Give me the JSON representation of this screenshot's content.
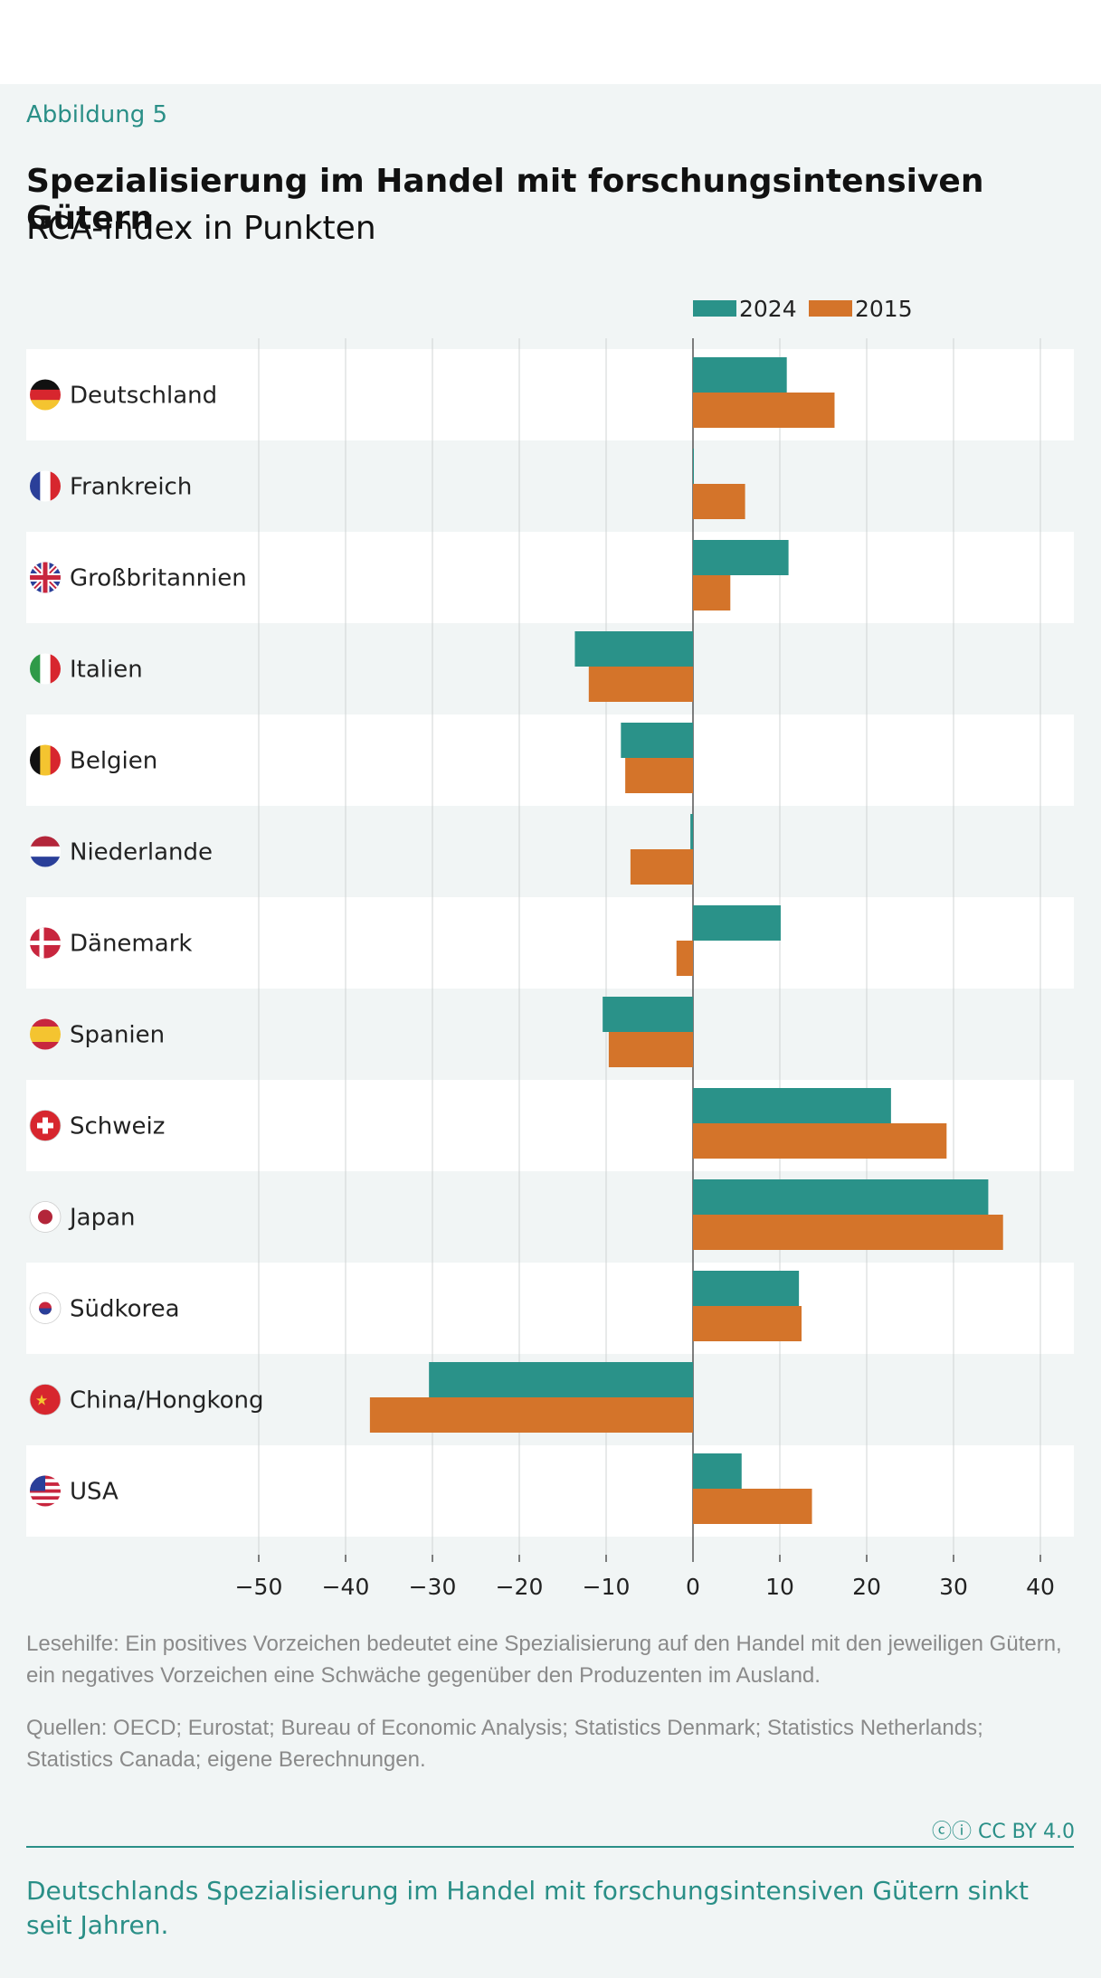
{
  "figure_label": "Abbildung 5",
  "notes": {
    "reading_aid": "Lesehilfe: Ein positives Vorzeichen bedeutet eine Spezialisierung auf den Handel mit den jeweiligen Gütern, ein negatives Vorzeichen eine Schwäche gegenüber den Produzenten im Ausland.",
    "sources": "Quellen: OECD; Eurostat; Bureau of Economic Analysis; Statistics Denmark; Statistics Netherlands; Statistics Canada; eigene Berechnungen."
  },
  "license": "CC BY 4.0",
  "summary": "Deutschlands Spezialisierung im Handel mit forschungsintensiven Gütern sinkt seit Jahren.",
  "colors": {
    "series_2024": "#2a9289",
    "series_2015": "#d4742a",
    "band_light": "#ffffff",
    "band_dark": "#f1f5f5",
    "accent": "#2a8f87"
  },
  "chart_data": {
    "type": "bar",
    "orientation": "horizontal",
    "title": "Spezialisierung im Handel mit forschungsintensiven Gütern",
    "subtitle": "RCA-Index in Punkten",
    "legend_position": "top",
    "grid": true,
    "xlim": [
      -50,
      40
    ],
    "xticks": [
      -50,
      -40,
      -30,
      -20,
      -10,
      0,
      10,
      20,
      30,
      40
    ],
    "xtick_labels": [
      "−50",
      "−40",
      "−30",
      "−20",
      "−10",
      "0",
      "10",
      "20",
      "30",
      "40"
    ],
    "categories": [
      "Deutschland",
      "Frankreich",
      "Großbritannien",
      "Italien",
      "Belgien",
      "Niederlande",
      "Dänemark",
      "Spanien",
      "Schweiz",
      "Japan",
      "Südkorea",
      "China/Hongkong",
      "USA"
    ],
    "flag_icons": [
      "flag-germany-icon",
      "flag-france-icon",
      "flag-uk-icon",
      "flag-italy-icon",
      "flag-belgium-icon",
      "flag-netherlands-icon",
      "flag-denmark-icon",
      "flag-spain-icon",
      "flag-switzerland-icon",
      "flag-japan-icon",
      "flag-south-korea-icon",
      "flag-china-icon",
      "flag-usa-icon"
    ],
    "series": [
      {
        "name": "2024",
        "values": [
          10.8,
          0.1,
          11.0,
          -13.6,
          -8.3,
          -0.3,
          10.1,
          -10.4,
          22.8,
          34.0,
          12.2,
          -30.4,
          5.6
        ]
      },
      {
        "name": "2015",
        "values": [
          16.3,
          6.0,
          4.3,
          -12.0,
          -7.8,
          -7.2,
          -1.9,
          -9.7,
          29.2,
          35.7,
          12.5,
          -37.2,
          13.7
        ]
      }
    ]
  }
}
